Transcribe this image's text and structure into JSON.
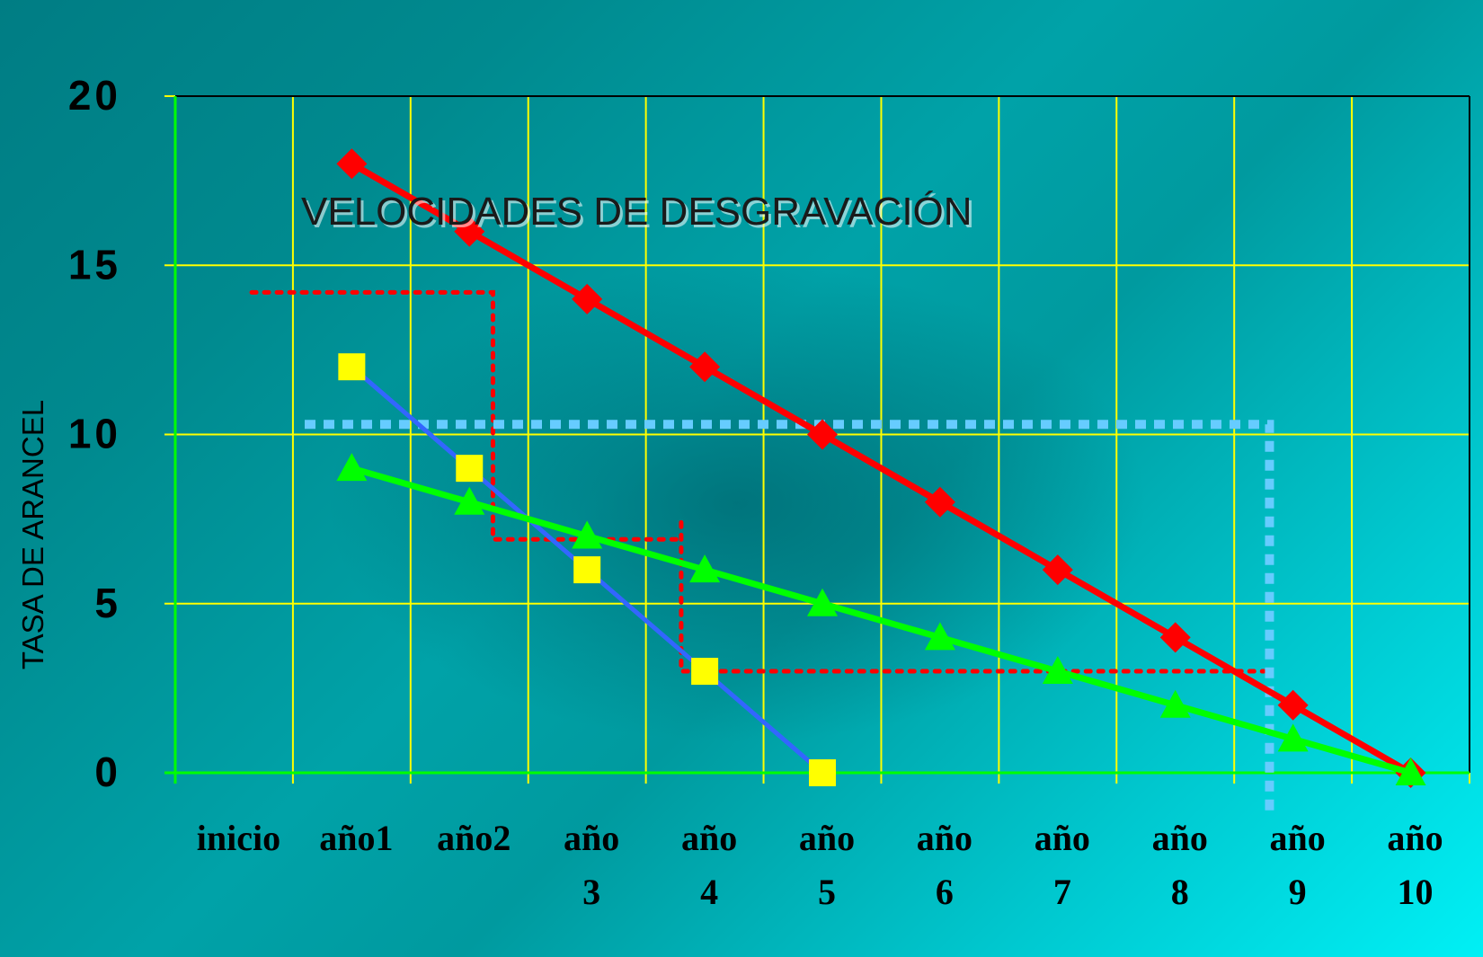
{
  "chart_data": {
    "type": "line",
    "title": "VELOCIDADES DE DESGRAVACIÓN",
    "xlabel": "",
    "ylabel": "TASA DE ARANCEL",
    "categories": [
      "inicio",
      "año1",
      "año2",
      "año 3",
      "año 4",
      "año 5",
      "año 6",
      "año 7",
      "año 8",
      "año 9",
      "año 10"
    ],
    "ylim": [
      0,
      20
    ],
    "yticks": [
      "0",
      "5",
      "10",
      "15",
      "20"
    ],
    "grid": true,
    "series": [
      {
        "values": [
          null,
          18,
          16,
          14,
          12,
          10,
          8,
          6,
          4,
          2,
          0
        ],
        "color": "#ff0000",
        "marker": "diamond",
        "marker_color": "#ff0000"
      },
      {
        "values": [
          null,
          12,
          9,
          6,
          3,
          0,
          null,
          null,
          null,
          null,
          null
        ],
        "color": "#3366ff",
        "marker": "square",
        "marker_color": "#ffff00"
      },
      {
        "values": [
          null,
          9,
          8,
          7,
          6,
          5,
          4,
          3,
          2,
          1,
          0
        ],
        "color": "#00ff00",
        "marker": "triangle",
        "marker_color": "#00ff00"
      }
    ],
    "colors": {
      "grid": "#ffff00",
      "axis": "#00ff00",
      "red_guides": "#ff0000",
      "blue_guides": "#66ccff"
    }
  }
}
